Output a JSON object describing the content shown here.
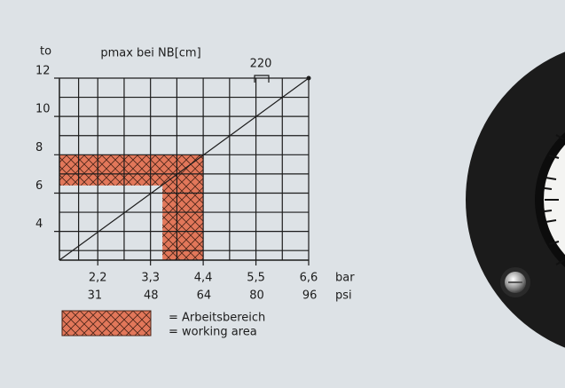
{
  "chart_data": {
    "type": "line",
    "title": "pmax bei NB[cm]",
    "y_label": "to",
    "x_label": "bar",
    "x2_label": "psi",
    "annotation": "220",
    "xlim": [
      1.4,
      6.6
    ],
    "xticks": [
      {
        "value": 2.2,
        "label": "2,2"
      },
      {
        "value": 3.3,
        "label": "3,3"
      },
      {
        "value": 4.4,
        "label": "4,4"
      },
      {
        "value": 5.5,
        "label": "5,5"
      },
      {
        "value": 6.6,
        "label": "6,6"
      }
    ],
    "x2lim": [
      20.3,
      95.7
    ],
    "x2ticks": [
      31,
      48,
      64,
      80,
      96
    ],
    "ylim": [
      2.5,
      12
    ],
    "yticks": [
      4,
      6,
      8,
      10,
      12
    ],
    "grid": true,
    "reference_line": {
      "x": [
        1.4,
        6.6
      ],
      "y": [
        2.5,
        12
      ]
    },
    "working_area": {
      "label_de": "= Arbeitsbereich",
      "label_en": "= working area",
      "color": "#e2775a",
      "x": [
        1.4,
        4.4,
        4.4,
        3.55,
        3.55,
        1.4
      ],
      "y": [
        8,
        8,
        2.5,
        2.5,
        6.4,
        6.4
      ]
    }
  }
}
